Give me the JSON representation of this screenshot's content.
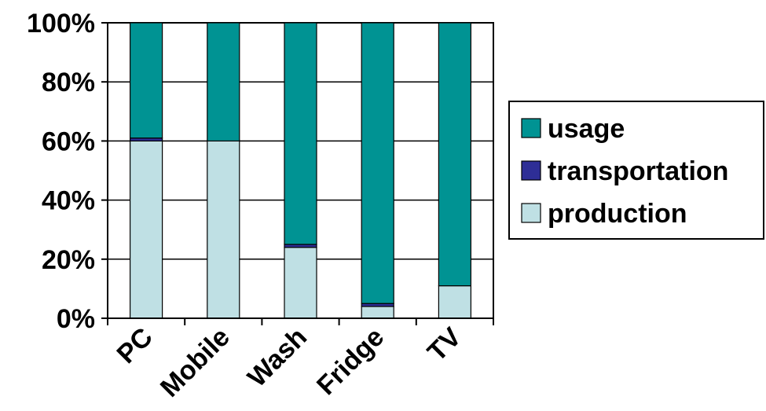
{
  "chart_data": {
    "type": "bar",
    "stacked": "percent",
    "categories": [
      "PC",
      "Mobile",
      "Wash",
      "Fridge",
      "TV"
    ],
    "series": [
      {
        "name": "production",
        "color": "#bfe0e4",
        "values": [
          60,
          60,
          24,
          4,
          11
        ]
      },
      {
        "name": "transportation",
        "color": "#2e2e96",
        "values": [
          1,
          0,
          1,
          1,
          0
        ]
      },
      {
        "name": "usage",
        "color": "#009393",
        "values": [
          39,
          40,
          75,
          95,
          89
        ]
      }
    ],
    "yticks": [
      "0%",
      "20%",
      "40%",
      "60%",
      "80%",
      "100%"
    ],
    "ylim": [
      0,
      100
    ],
    "grid": true,
    "legend_placement": "right",
    "legend_order": [
      "usage",
      "transportation",
      "production"
    ]
  }
}
